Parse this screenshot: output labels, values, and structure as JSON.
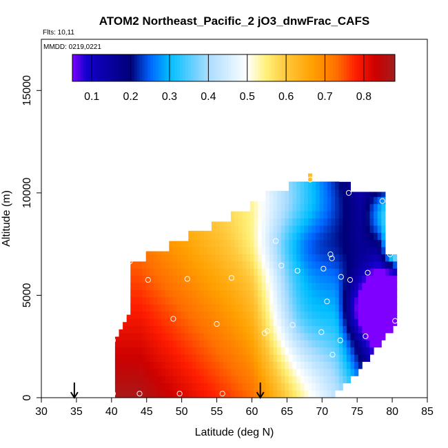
{
  "chart_data": {
    "type": "heatmap",
    "title": "ATOM2 Northeast_Pacific_2 jO3_dnwFrac_CAFS",
    "flights_note": "Flts: 10,11",
    "date_note": "MMDD: 0219,0221",
    "xlabel": "Latitude (deg N)",
    "ylabel": "Altitude (m)",
    "xlim": [
      30,
      85
    ],
    "ylim": [
      0,
      17500
    ],
    "x_ticks": [
      30,
      35,
      40,
      45,
      50,
      55,
      60,
      65,
      70,
      75,
      80,
      85
    ],
    "y_ticks": [
      0,
      5000,
      10000,
      15000
    ],
    "colorbar": {
      "range": [
        0.05,
        0.88
      ],
      "ticks": [
        0.1,
        0.2,
        0.3,
        0.4,
        0.5,
        0.6,
        0.7,
        0.8
      ],
      "tick_labels": [
        "0.1",
        "0.2",
        "0.3",
        "0.4",
        "0.5",
        "0.6",
        "0.7",
        "0.8"
      ]
    },
    "arrows_latitude": [
      34.7,
      61.2
    ],
    "sample_points": [
      [
        40.2,
        200
      ],
      [
        44.0,
        200
      ],
      [
        49.7,
        200
      ],
      [
        55.8,
        200
      ],
      [
        40.2,
        2800
      ],
      [
        42.6,
        6650
      ],
      [
        45.2,
        5750
      ],
      [
        50.8,
        5800
      ],
      [
        57.1,
        5850
      ],
      [
        48.8,
        3850
      ],
      [
        55.0,
        3600
      ],
      [
        61.8,
        3150
      ],
      [
        62.2,
        3250
      ],
      [
        65.8,
        3550
      ],
      [
        69.9,
        3200
      ],
      [
        72.6,
        2800
      ],
      [
        76.2,
        3000
      ],
      [
        63.4,
        7650
      ],
      [
        64.2,
        6450
      ],
      [
        66.5,
        6200
      ],
      [
        70.2,
        6300
      ],
      [
        71.2,
        7000
      ],
      [
        71.4,
        6800
      ],
      [
        72.7,
        5900
      ],
      [
        74.0,
        5750
      ],
      [
        76.5,
        6100
      ],
      [
        80.4,
        3750
      ],
      [
        78.6,
        9600
      ],
      [
        79.7,
        7000
      ],
      [
        68.3,
        10650
      ],
      [
        73.8,
        10000
      ],
      [
        70.7,
        4700
      ],
      [
        71.5,
        2100
      ]
    ]
  }
}
